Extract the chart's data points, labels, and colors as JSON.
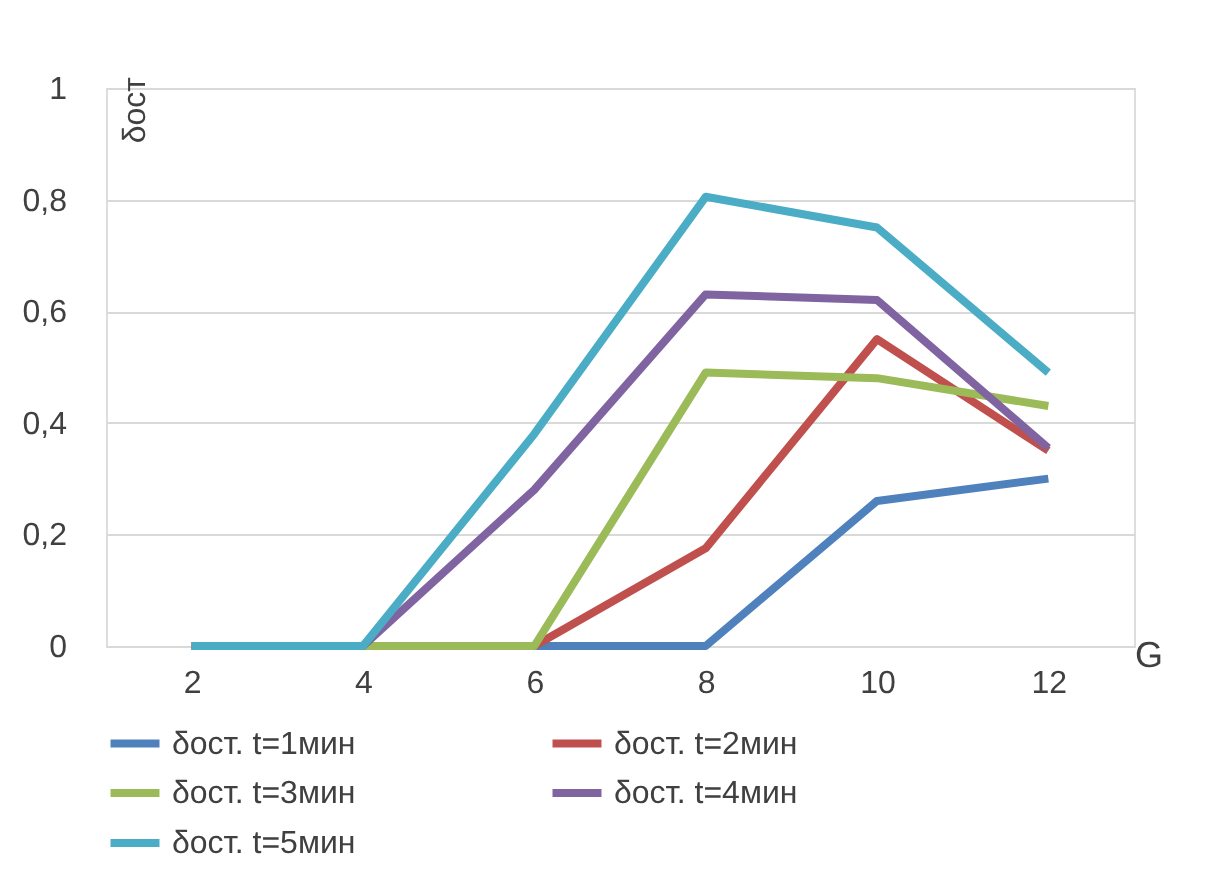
{
  "chart_data": {
    "type": "line",
    "xlabel": "G",
    "ylabel": "δост",
    "categories": [
      "2",
      "4",
      "6",
      "8",
      "10",
      "12"
    ],
    "series": [
      {
        "name": "δост. t=1мин",
        "color": "#4f81bd",
        "values": [
          0,
          0,
          0,
          0,
          0.26,
          0.3
        ]
      },
      {
        "name": "δост. t=2мин",
        "color": "#c0504d",
        "values": [
          0,
          0,
          0,
          0.175,
          0.55,
          0.35
        ]
      },
      {
        "name": "δост. t=3мин",
        "color": "#9bbb59",
        "values": [
          0,
          0,
          0,
          0.49,
          0.48,
          0.43
        ]
      },
      {
        "name": "δост. t=4мин",
        "color": "#8064a2",
        "values": [
          0,
          0,
          0.28,
          0.63,
          0.62,
          0.355
        ]
      },
      {
        "name": "δост. t=5мин",
        "color": "#4bacc6",
        "values": [
          0,
          0,
          0.38,
          0.805,
          0.75,
          0.49
        ]
      }
    ],
    "ylim": [
      0,
      1
    ],
    "yticks": [
      0,
      {
        "value": 0.2,
        "label": "0,2"
      },
      {
        "value": 0.4,
        "label": "0,4"
      },
      {
        "value": 0.6,
        "label": "0,6"
      },
      {
        "value": 0.8,
        "label": "0,8"
      },
      1
    ],
    "grid": "y",
    "legend": "bottom",
    "marker": "none",
    "line_style": "solid"
  }
}
